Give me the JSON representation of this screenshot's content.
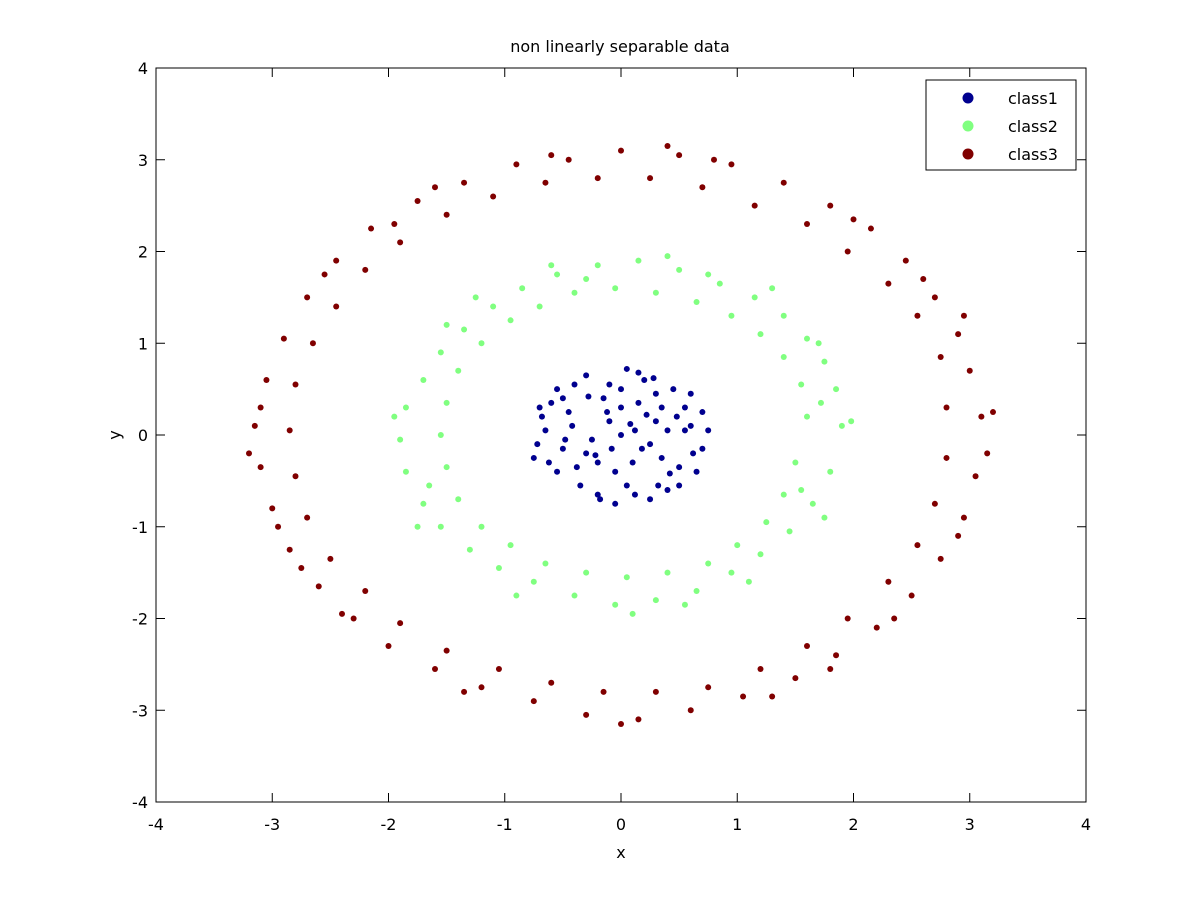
{
  "chart_data": {
    "type": "scatter",
    "title": "non linearly separable data",
    "xlabel": "x",
    "ylabel": "y",
    "xlim": [
      -4,
      4
    ],
    "ylim": [
      -4,
      4
    ],
    "xticks": [
      "-4",
      "-3",
      "-2",
      "-1",
      "0",
      "1",
      "2",
      "3",
      "4"
    ],
    "yticks": [
      "-4",
      "-3",
      "-2",
      "-1",
      "0",
      "1",
      "2",
      "3",
      "4"
    ],
    "grid": false,
    "legend_position": "top-right",
    "series": [
      {
        "name": "class1",
        "color": "#00008f",
        "radius_range": [
          0,
          0.75
        ],
        "points": [
          [
            0.0,
            0.0
          ],
          [
            0.12,
            0.05
          ],
          [
            -0.1,
            0.15
          ],
          [
            0.25,
            -0.1
          ],
          [
            -0.3,
            -0.2
          ],
          [
            0.35,
            0.3
          ],
          [
            -0.45,
            0.25
          ],
          [
            0.5,
            -0.35
          ],
          [
            -0.55,
            -0.4
          ],
          [
            0.6,
            0.1
          ],
          [
            -0.65,
            0.05
          ],
          [
            0.2,
            0.6
          ],
          [
            -0.2,
            -0.65
          ],
          [
            0.05,
            0.72
          ],
          [
            -0.05,
            -0.75
          ],
          [
            0.7,
            -0.15
          ],
          [
            -0.72,
            -0.1
          ],
          [
            0.45,
            0.5
          ],
          [
            -0.4,
            0.55
          ],
          [
            0.4,
            -0.6
          ],
          [
            -0.35,
            -0.55
          ],
          [
            0.15,
            0.35
          ],
          [
            -0.15,
            0.4
          ],
          [
            0.3,
            0.15
          ],
          [
            -0.25,
            -0.05
          ],
          [
            0.1,
            -0.3
          ],
          [
            -0.05,
            -0.4
          ],
          [
            0.55,
            0.3
          ],
          [
            -0.6,
            0.35
          ],
          [
            0.65,
            -0.4
          ],
          [
            -0.5,
            -0.15
          ],
          [
            0.0,
            0.5
          ],
          [
            0.05,
            -0.55
          ],
          [
            0.3,
            0.45
          ],
          [
            -0.3,
            0.65
          ],
          [
            0.25,
            -0.7
          ],
          [
            -0.2,
            -0.3
          ],
          [
            0.4,
            0.05
          ],
          [
            -0.42,
            0.1
          ],
          [
            0.18,
            -0.15
          ],
          [
            -0.12,
            0.25
          ],
          [
            0.6,
            0.45
          ],
          [
            -0.7,
            0.3
          ],
          [
            0.75,
            0.05
          ],
          [
            -0.75,
            -0.25
          ],
          [
            0.5,
            -0.55
          ],
          [
            -0.55,
            0.5
          ],
          [
            0.22,
            0.22
          ],
          [
            -0.22,
            -0.22
          ],
          [
            0.08,
            0.12
          ],
          [
            0.35,
            -0.25
          ],
          [
            -0.38,
            -0.35
          ],
          [
            0.48,
            0.2
          ],
          [
            -0.48,
            -0.05
          ],
          [
            0.28,
            0.62
          ],
          [
            -0.1,
            0.55
          ],
          [
            0.12,
            -0.65
          ],
          [
            0.62,
            -0.2
          ],
          [
            -0.62,
            -0.3
          ],
          [
            0.0,
            0.3
          ],
          [
            0.7,
            0.25
          ],
          [
            -0.68,
            0.2
          ],
          [
            0.42,
            -0.42
          ],
          [
            -0.28,
            0.42
          ],
          [
            0.15,
            0.68
          ],
          [
            -0.18,
            -0.7
          ],
          [
            0.55,
            0.05
          ],
          [
            -0.5,
            0.4
          ],
          [
            0.32,
            -0.55
          ],
          [
            -0.08,
            -0.15
          ]
        ]
      },
      {
        "name": "class2",
        "color": "#80ff80",
        "radius_range": [
          1.45,
          2.0
        ],
        "points": [
          [
            1.9,
            0.1
          ],
          [
            1.85,
            0.5
          ],
          [
            1.75,
            0.8
          ],
          [
            1.6,
            1.05
          ],
          [
            1.4,
            1.3
          ],
          [
            1.15,
            1.5
          ],
          [
            0.85,
            1.65
          ],
          [
            0.5,
            1.8
          ],
          [
            0.15,
            1.9
          ],
          [
            -0.2,
            1.85
          ],
          [
            -0.55,
            1.75
          ],
          [
            -0.85,
            1.6
          ],
          [
            -1.1,
            1.4
          ],
          [
            -1.35,
            1.15
          ],
          [
            -1.55,
            0.9
          ],
          [
            -1.7,
            0.6
          ],
          [
            -1.85,
            0.3
          ],
          [
            -1.9,
            -0.05
          ],
          [
            -1.85,
            -0.4
          ],
          [
            -1.7,
            -0.75
          ],
          [
            -1.55,
            -1.0
          ],
          [
            -1.3,
            -1.25
          ],
          [
            -1.05,
            -1.45
          ],
          [
            -0.75,
            -1.6
          ],
          [
            -0.4,
            -1.75
          ],
          [
            -0.05,
            -1.85
          ],
          [
            0.3,
            -1.8
          ],
          [
            0.65,
            -1.7
          ],
          [
            0.95,
            -1.5
          ],
          [
            1.2,
            -1.3
          ],
          [
            1.45,
            -1.05
          ],
          [
            1.65,
            -0.75
          ],
          [
            1.8,
            -0.4
          ],
          [
            1.6,
            0.2
          ],
          [
            1.55,
            0.55
          ],
          [
            1.4,
            0.85
          ],
          [
            1.2,
            1.1
          ],
          [
            0.95,
            1.3
          ],
          [
            0.65,
            1.45
          ],
          [
            0.3,
            1.55
          ],
          [
            -0.05,
            1.6
          ],
          [
            -0.4,
            1.55
          ],
          [
            -0.7,
            1.4
          ],
          [
            -0.95,
            1.25
          ],
          [
            -1.2,
            1.0
          ],
          [
            -1.4,
            0.7
          ],
          [
            -1.5,
            0.35
          ],
          [
            -1.55,
            0.0
          ],
          [
            -1.5,
            -0.35
          ],
          [
            -1.4,
            -0.7
          ],
          [
            -1.2,
            -1.0
          ],
          [
            -0.95,
            -1.2
          ],
          [
            -0.65,
            -1.4
          ],
          [
            -0.3,
            -1.5
          ],
          [
            0.05,
            -1.55
          ],
          [
            0.4,
            -1.5
          ],
          [
            0.75,
            -1.4
          ],
          [
            1.0,
            -1.2
          ],
          [
            1.25,
            -0.95
          ],
          [
            1.4,
            -0.65
          ],
          [
            1.5,
            -0.3
          ],
          [
            1.98,
            0.15
          ],
          [
            1.7,
            1.0
          ],
          [
            1.3,
            1.6
          ],
          [
            0.4,
            1.95
          ],
          [
            -0.6,
            1.85
          ],
          [
            -1.5,
            1.2
          ],
          [
            -1.95,
            0.2
          ],
          [
            -1.75,
            -1.0
          ],
          [
            -0.9,
            -1.75
          ],
          [
            0.1,
            -1.95
          ],
          [
            1.1,
            -1.6
          ],
          [
            1.75,
            -0.9
          ],
          [
            1.72,
            0.35
          ],
          [
            0.75,
            1.75
          ],
          [
            -1.25,
            1.5
          ],
          [
            -1.65,
            -0.55
          ],
          [
            0.55,
            -1.85
          ],
          [
            1.55,
            -0.6
          ],
          [
            -0.3,
            1.7
          ]
        ]
      },
      {
        "name": "class3",
        "color": "#800000",
        "radius_range": [
          2.6,
          3.2
        ],
        "points": [
          [
            3.1,
            0.2
          ],
          [
            3.0,
            0.7
          ],
          [
            2.9,
            1.1
          ],
          [
            2.7,
            1.5
          ],
          [
            2.45,
            1.9
          ],
          [
            2.15,
            2.25
          ],
          [
            1.8,
            2.5
          ],
          [
            1.4,
            2.75
          ],
          [
            0.95,
            2.95
          ],
          [
            0.5,
            3.05
          ],
          [
            0.0,
            3.1
          ],
          [
            -0.45,
            3.0
          ],
          [
            -0.9,
            2.95
          ],
          [
            -1.35,
            2.75
          ],
          [
            -1.75,
            2.55
          ],
          [
            -2.15,
            2.25
          ],
          [
            -2.45,
            1.9
          ],
          [
            -2.7,
            1.5
          ],
          [
            -2.9,
            1.05
          ],
          [
            -3.05,
            0.6
          ],
          [
            -3.15,
            0.1
          ],
          [
            -3.1,
            -0.35
          ],
          [
            -3.0,
            -0.8
          ],
          [
            -2.85,
            -1.25
          ],
          [
            -2.6,
            -1.65
          ],
          [
            -2.3,
            -2.0
          ],
          [
            -2.0,
            -2.3
          ],
          [
            -1.6,
            -2.55
          ],
          [
            -1.2,
            -2.75
          ],
          [
            -0.75,
            -2.9
          ],
          [
            -0.3,
            -3.05
          ],
          [
            0.15,
            -3.1
          ],
          [
            0.6,
            -3.0
          ],
          [
            1.05,
            -2.85
          ],
          [
            1.5,
            -2.65
          ],
          [
            1.85,
            -2.4
          ],
          [
            2.2,
            -2.1
          ],
          [
            2.5,
            -1.75
          ],
          [
            2.75,
            -1.35
          ],
          [
            2.95,
            -0.9
          ],
          [
            3.05,
            -0.45
          ],
          [
            2.8,
            0.3
          ],
          [
            2.75,
            0.85
          ],
          [
            2.55,
            1.3
          ],
          [
            2.3,
            1.65
          ],
          [
            1.95,
            2.0
          ],
          [
            1.6,
            2.3
          ],
          [
            1.15,
            2.5
          ],
          [
            0.7,
            2.7
          ],
          [
            0.25,
            2.8
          ],
          [
            -0.2,
            2.8
          ],
          [
            -0.65,
            2.75
          ],
          [
            -1.1,
            2.6
          ],
          [
            -1.5,
            2.4
          ],
          [
            -1.9,
            2.1
          ],
          [
            -2.2,
            1.8
          ],
          [
            -2.45,
            1.4
          ],
          [
            -2.65,
            1.0
          ],
          [
            -2.8,
            0.55
          ],
          [
            -2.85,
            0.05
          ],
          [
            -2.8,
            -0.45
          ],
          [
            -2.7,
            -0.9
          ],
          [
            -2.5,
            -1.35
          ],
          [
            -2.2,
            -1.7
          ],
          [
            -1.9,
            -2.05
          ],
          [
            -1.5,
            -2.35
          ],
          [
            -1.05,
            -2.55
          ],
          [
            -0.6,
            -2.7
          ],
          [
            -0.15,
            -2.8
          ],
          [
            0.3,
            -2.8
          ],
          [
            0.75,
            -2.75
          ],
          [
            1.2,
            -2.55
          ],
          [
            1.6,
            -2.3
          ],
          [
            1.95,
            -2.0
          ],
          [
            2.3,
            -1.6
          ],
          [
            2.55,
            -1.2
          ],
          [
            2.7,
            -0.75
          ],
          [
            2.8,
            -0.25
          ],
          [
            3.2,
            0.25
          ],
          [
            2.95,
            1.3
          ],
          [
            2.0,
            2.35
          ],
          [
            0.8,
            3.0
          ],
          [
            -0.6,
            3.05
          ],
          [
            -1.6,
            2.7
          ],
          [
            -2.55,
            1.75
          ],
          [
            -3.1,
            0.3
          ],
          [
            -2.95,
            -1.0
          ],
          [
            -2.4,
            -1.95
          ],
          [
            -1.35,
            -2.8
          ],
          [
            0.0,
            -3.15
          ],
          [
            1.3,
            -2.85
          ],
          [
            2.35,
            -2.0
          ],
          [
            2.9,
            -1.1
          ],
          [
            3.15,
            -0.2
          ],
          [
            -3.2,
            -0.2
          ],
          [
            2.6,
            1.7
          ],
          [
            -1.95,
            2.3
          ],
          [
            -2.75,
            -1.45
          ],
          [
            1.8,
            -2.55
          ],
          [
            0.4,
            3.15
          ]
        ]
      }
    ]
  }
}
